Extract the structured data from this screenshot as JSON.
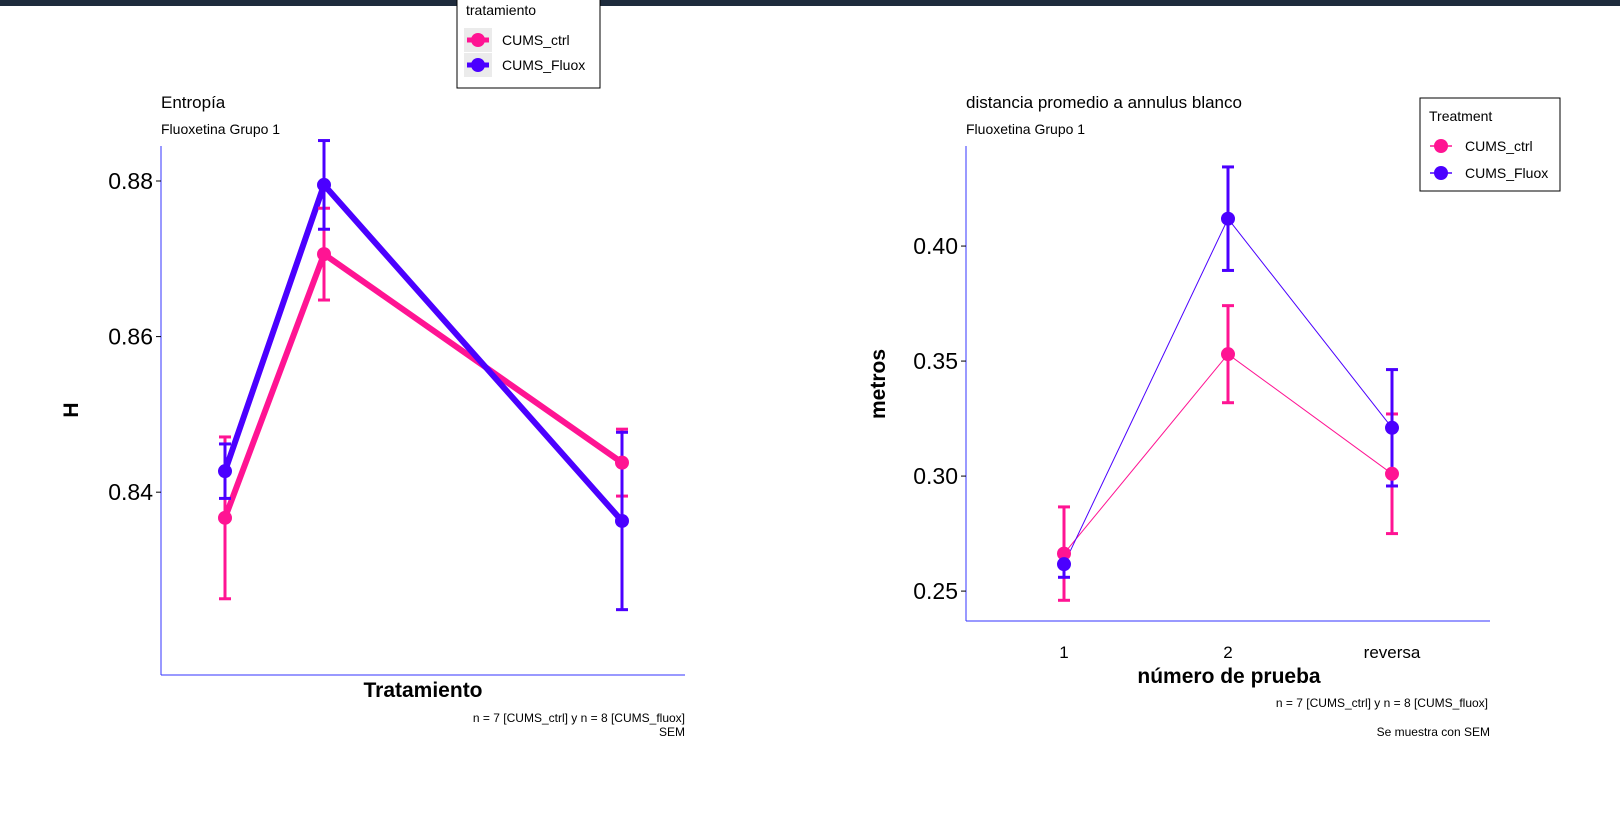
{
  "colors": {
    "ctrl": "#ff1493",
    "fluox": "#4b00ff",
    "axis": "#3333ff",
    "topbar": "#1e2b3c"
  },
  "left_legend": {
    "title": "tratamiento",
    "items": [
      "CUMS_ctrl",
      "CUMS_Fluox"
    ]
  },
  "right_legend": {
    "title": "Treatment",
    "items": [
      "CUMS_ctrl",
      "CUMS_Fluox"
    ]
  },
  "chart_data": [
    {
      "type": "line",
      "title": "Entropía",
      "subtitle": "Fluoxetina Grupo 1",
      "xlabel": "Tratamiento",
      "ylabel": "H",
      "caption_lines": [
        "n = 7  [CUMS_ctrl] y n = 8 [CUMS_fluox]",
        "SEM"
      ],
      "x_positions": [
        1,
        2,
        3
      ],
      "x_tick_labels": [],
      "y_ticks": [
        0.84,
        0.86,
        0.88
      ],
      "y_tick_labels": [
        "0.84",
        "0.86",
        "0.88"
      ],
      "ylim": [
        0.8165,
        0.8845
      ],
      "grid": false,
      "series": [
        {
          "name": "CUMS_ctrl",
          "values": [
            0.8367,
            0.8706,
            0.8438
          ],
          "err": [
            0.0104,
            0.0059,
            0.0043
          ]
        },
        {
          "name": "CUMS_Fluox",
          "values": [
            0.8427,
            0.8795,
            0.8363
          ],
          "err": [
            0.0035,
            0.0057,
            0.0114
          ]
        }
      ]
    },
    {
      "type": "line",
      "title": "distancia promedio a annulus blanco",
      "subtitle": "Fluoxetina Grupo 1",
      "xlabel": "número de prueba",
      "ylabel": "metros",
      "caption_lines": [
        "n = 7  [CUMS_ctrl] y n = 8 [CUMS_fluox]",
        "Se muestra con SEM"
      ],
      "categories": [
        "1",
        "2",
        "reversa"
      ],
      "y_ticks": [
        0.25,
        0.3,
        0.35,
        0.4
      ],
      "y_tick_labels": [
        "0.25",
        "0.30",
        "0.35",
        "0.40"
      ],
      "ylim": [
        0.237,
        0.4435
      ],
      "grid": false,
      "legend_position": "top-right",
      "series": [
        {
          "name": "CUMS_ctrl",
          "values": [
            0.2663,
            0.353,
            0.301
          ],
          "err": [
            0.0203,
            0.0211,
            0.026
          ]
        },
        {
          "name": "CUMS_Fluox",
          "values": [
            0.2617,
            0.4119,
            0.321
          ],
          "err": [
            0.0057,
            0.0225,
            0.0253
          ]
        }
      ]
    }
  ]
}
